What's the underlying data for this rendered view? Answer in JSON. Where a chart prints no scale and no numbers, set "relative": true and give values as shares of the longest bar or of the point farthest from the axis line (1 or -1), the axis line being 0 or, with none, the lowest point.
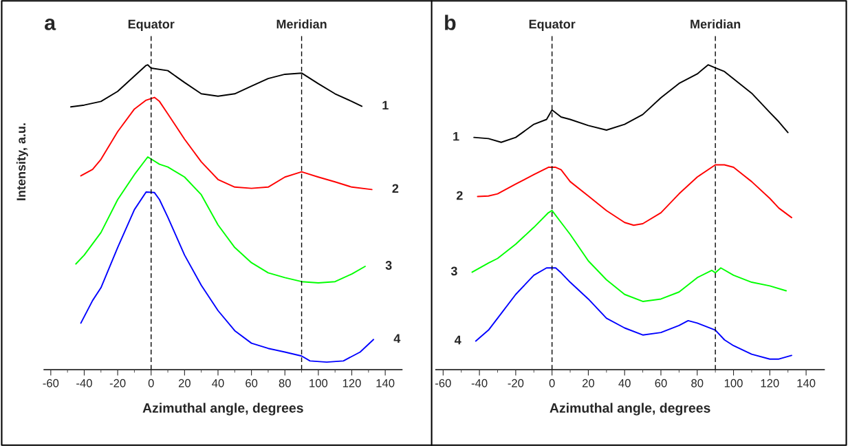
{
  "chart_data": [
    {
      "type": "line",
      "relative": true,
      "xlabel": "Azimuthal angle, degrees",
      "ylabel": "Intensity, a.u.",
      "annotations": [
        "a"
      ],
      "xlim": [
        -64,
        150
      ],
      "xticks": [
        -60,
        -40,
        -20,
        0,
        20,
        40,
        60,
        80,
        100,
        120,
        140
      ],
      "tick_labels": "x",
      "grid": false,
      "legend": "right",
      "line_style": "solid",
      "marker": "none",
      "ref_lines": [
        {
          "axis": "x",
          "value": 0,
          "label": "Equator",
          "color": "#000000",
          "line_style": "dashed"
        },
        {
          "axis": "x",
          "value": 90,
          "label": "Meridian",
          "color": "#000000",
          "line_style": "dashed"
        }
      ],
      "series": [
        {
          "name": "1",
          "color": "#000000",
          "x": [
            -48,
            -40,
            -30,
            -20,
            -10,
            -3,
            -2,
            0,
            10,
            20,
            30,
            40,
            50,
            60,
            70,
            80,
            90,
            100,
            110,
            120,
            126
          ],
          "values": [
            0.862,
            0.868,
            0.88,
            0.913,
            0.963,
            0.998,
            1.0,
            0.989,
            0.981,
            0.942,
            0.905,
            0.897,
            0.905,
            0.93,
            0.955,
            0.969,
            0.973,
            0.938,
            0.905,
            0.88,
            0.864
          ]
        },
        {
          "name": "2",
          "color": "#ff0000",
          "x": [
            -42,
            -35,
            -30,
            -20,
            -10,
            -3,
            2,
            5,
            10,
            20,
            30,
            40,
            50,
            60,
            70,
            80,
            90,
            100,
            110,
            120,
            132
          ],
          "values": [
            0.636,
            0.657,
            0.69,
            0.781,
            0.855,
            0.884,
            0.893,
            0.88,
            0.839,
            0.756,
            0.682,
            0.624,
            0.599,
            0.595,
            0.599,
            0.632,
            0.649,
            0.632,
            0.616,
            0.599,
            0.591
          ]
        },
        {
          "name": "3",
          "color": "#00ff00",
          "x": [
            -45,
            -40,
            -30,
            -20,
            -10,
            -2,
            5,
            10,
            20,
            30,
            40,
            50,
            60,
            70,
            80,
            90,
            100,
            110,
            120,
            128
          ],
          "values": [
            0.347,
            0.376,
            0.45,
            0.558,
            0.64,
            0.698,
            0.674,
            0.665,
            0.632,
            0.574,
            0.475,
            0.401,
            0.351,
            0.318,
            0.302,
            0.289,
            0.285,
            0.289,
            0.314,
            0.339
          ]
        },
        {
          "name": "4",
          "color": "#0000ff",
          "x": [
            -42,
            -35,
            -30,
            -20,
            -10,
            -3,
            2,
            5,
            10,
            20,
            30,
            40,
            50,
            60,
            70,
            80,
            90,
            95,
            105,
            115,
            125,
            133
          ],
          "values": [
            0.153,
            0.227,
            0.269,
            0.401,
            0.525,
            0.583,
            0.581,
            0.558,
            0.5,
            0.376,
            0.277,
            0.194,
            0.128,
            0.087,
            0.07,
            0.058,
            0.045,
            0.029,
            0.025,
            0.029,
            0.058,
            0.099
          ]
        }
      ]
    },
    {
      "type": "line",
      "relative": true,
      "xlabel": "Azimuthal angle, degrees",
      "annotations": [
        "b"
      ],
      "xlim": [
        -64,
        150
      ],
      "xticks": [
        -60,
        -40,
        -20,
        0,
        20,
        40,
        60,
        80,
        100,
        120,
        140
      ],
      "tick_labels": "x",
      "grid": false,
      "legend": "left",
      "line_style": "solid",
      "marker": "none",
      "ref_lines": [
        {
          "axis": "x",
          "value": 0,
          "label": "Equator",
          "color": "#000000",
          "line_style": "dashed"
        },
        {
          "axis": "x",
          "value": 90,
          "label": "Meridian",
          "color": "#000000",
          "line_style": "dashed"
        }
      ],
      "series": [
        {
          "name": "1",
          "color": "#000000",
          "x": [
            -43,
            -35,
            -28,
            -20,
            -10,
            -3,
            0,
            5,
            10,
            20,
            30,
            40,
            50,
            60,
            70,
            80,
            86,
            90,
            95,
            100,
            110,
            120,
            125,
            130
          ],
          "values": [
            0.762,
            0.758,
            0.746,
            0.762,
            0.805,
            0.821,
            0.852,
            0.829,
            0.821,
            0.801,
            0.786,
            0.805,
            0.837,
            0.892,
            0.939,
            0.97,
            1.0,
            0.99,
            0.978,
            0.954,
            0.907,
            0.844,
            0.813,
            0.778
          ]
        },
        {
          "name": "2",
          "color": "#ff0000",
          "x": [
            -41,
            -35,
            -30,
            -20,
            -10,
            -2,
            2,
            5,
            10,
            20,
            30,
            40,
            45,
            50,
            60,
            70,
            80,
            90,
            95,
            100,
            110,
            120,
            125,
            132
          ],
          "values": [
            0.568,
            0.57,
            0.577,
            0.609,
            0.64,
            0.664,
            0.664,
            0.656,
            0.617,
            0.57,
            0.522,
            0.483,
            0.474,
            0.479,
            0.515,
            0.577,
            0.632,
            0.672,
            0.672,
            0.664,
            0.617,
            0.562,
            0.53,
            0.499
          ]
        },
        {
          "name": "3",
          "color": "#00ff00",
          "x": [
            -44,
            -35,
            -30,
            -20,
            -10,
            -2,
            0,
            5,
            10,
            20,
            30,
            40,
            50,
            60,
            70,
            80,
            88,
            90,
            93,
            100,
            110,
            120,
            129
          ],
          "values": [
            0.32,
            0.35,
            0.365,
            0.412,
            0.467,
            0.515,
            0.522,
            0.483,
            0.444,
            0.357,
            0.295,
            0.247,
            0.224,
            0.232,
            0.255,
            0.302,
            0.326,
            0.318,
            0.334,
            0.31,
            0.287,
            0.275,
            0.259
          ]
        },
        {
          "name": "4",
          "color": "#0000ff",
          "x": [
            -42,
            -35,
            -30,
            -20,
            -10,
            -3,
            2,
            5,
            10,
            20,
            30,
            40,
            50,
            60,
            70,
            75,
            80,
            90,
            95,
            100,
            110,
            120,
            125,
            132
          ],
          "values": [
            0.094,
            0.13,
            0.169,
            0.247,
            0.31,
            0.334,
            0.334,
            0.318,
            0.287,
            0.232,
            0.169,
            0.137,
            0.114,
            0.122,
            0.145,
            0.161,
            0.153,
            0.13,
            0.098,
            0.079,
            0.051,
            0.035,
            0.035,
            0.047
          ]
        }
      ]
    }
  ]
}
